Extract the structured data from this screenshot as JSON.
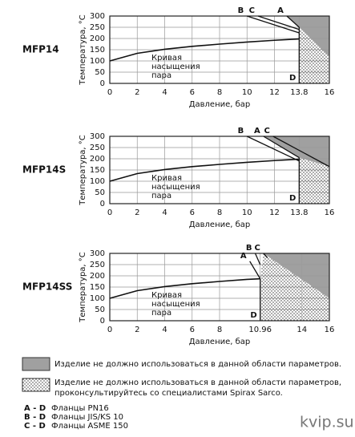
{
  "chart_data": [
    {
      "type": "line",
      "label": "MFP14",
      "xlabel": "Давление, бар",
      "ylabel": "Температура, °C",
      "xlim": [
        0,
        16
      ],
      "ylim": [
        0,
        300
      ],
      "xticks": [
        0,
        2,
        4,
        6,
        8,
        10,
        12,
        13.8,
        16
      ],
      "yticks": [
        0,
        50,
        100,
        150,
        200,
        250,
        300
      ],
      "grid": true,
      "curve_label": [
        "Кривая",
        "насыщения",
        "пара"
      ],
      "curve": {
        "x": [
          0,
          2,
          4,
          6,
          8,
          10,
          12,
          13.8
        ],
        "y": [
          100,
          134,
          152,
          165,
          175,
          184,
          192,
          198
        ]
      },
      "regions": [
        {
          "pattern": "solid",
          "x": [
            12.9,
            16,
            16,
            13.8
          ],
          "y": [
            300,
            300,
            120,
            250
          ]
        },
        {
          "pattern": "dots",
          "x": [
            13.8,
            16,
            16,
            13.8
          ],
          "y": [
            250,
            120,
            0,
            0
          ]
        }
      ],
      "lines": [
        {
          "label": "A",
          "x": [
            12.9,
            13.8
          ],
          "y": [
            300,
            250
          ]
        },
        {
          "label": "B",
          "x": [
            10,
            13.8
          ],
          "y": [
            300,
            225
          ]
        },
        {
          "label": "C",
          "x": [
            10.8,
            13.8
          ],
          "y": [
            300,
            240
          ]
        },
        {
          "label": "D",
          "x": [
            13.8,
            13.8
          ],
          "y": [
            0,
            250
          ]
        }
      ]
    },
    {
      "type": "line",
      "label": "MFP14S",
      "xlabel": "Давление, бар",
      "ylabel": "Температура, °C",
      "xlim": [
        0,
        16
      ],
      "ylim": [
        0,
        300
      ],
      "xticks": [
        0,
        2,
        4,
        6,
        8,
        10,
        12,
        13.8,
        16
      ],
      "yticks": [
        0,
        50,
        100,
        150,
        200,
        250,
        300
      ],
      "grid": true,
      "curve_label": [
        "Кривая",
        "насыщения",
        "пара"
      ],
      "curve": {
        "x": [
          0,
          2,
          4,
          6,
          8,
          10,
          12,
          13.8
        ],
        "y": [
          100,
          134,
          152,
          165,
          175,
          184,
          192,
          198
        ]
      },
      "regions": [
        {
          "pattern": "solid",
          "x": [
            11.2,
            16,
            16,
            13.8
          ],
          "y": [
            300,
            300,
            165,
            205
          ]
        },
        {
          "pattern": "dots",
          "x": [
            13.8,
            16,
            16,
            13.8
          ],
          "y": [
            205,
            165,
            0,
            0
          ]
        }
      ],
      "lines": [
        {
          "label": "A",
          "x": [
            11.2,
            13.8
          ],
          "y": [
            300,
            205
          ]
        },
        {
          "label": "C",
          "x": [
            11.9,
            16
          ],
          "y": [
            300,
            165
          ]
        },
        {
          "label": "B",
          "x": [
            10,
            13.8
          ],
          "y": [
            300,
            190
          ]
        },
        {
          "label": "D",
          "x": [
            13.8,
            13.8
          ],
          "y": [
            0,
            205
          ]
        }
      ]
    },
    {
      "type": "line",
      "label": "MFP14SS",
      "xlabel": "Давление, бар",
      "ylabel": "Температура, °C",
      "xlim": [
        0,
        16
      ],
      "ylim": [
        0,
        300
      ],
      "xticks": [
        0,
        2,
        4,
        6,
        8,
        10.96,
        14,
        16
      ],
      "yticks": [
        0,
        50,
        100,
        150,
        200,
        250,
        300
      ],
      "grid": true,
      "curve_label": [
        "Кривая",
        "насыщения",
        "пара"
      ],
      "curve": {
        "x": [
          0,
          2,
          4,
          6,
          8,
          10,
          10.96
        ],
        "y": [
          100,
          134,
          152,
          165,
          175,
          184,
          187
        ]
      },
      "regions": [
        {
          "pattern": "solid",
          "x": [
            11.2,
            16,
            16
          ],
          "y": [
            300,
            300,
            100
          ]
        },
        {
          "pattern": "dots",
          "x": [
            10.96,
            10.96,
            11.2,
            16,
            16
          ],
          "y": [
            0,
            187,
            300,
            100,
            0
          ]
        }
      ],
      "lines": [
        {
          "label": "A",
          "x": [
            10.2,
            10.96
          ],
          "y": [
            265,
            187
          ]
        },
        {
          "label": "B",
          "x": [
            10.6,
            10.96
          ],
          "y": [
            300,
            250
          ]
        },
        {
          "label": "C",
          "x": [
            11.2,
            11.5
          ],
          "y": [
            300,
            280
          ]
        },
        {
          "label": "D",
          "x": [
            10.96,
            10.96
          ],
          "y": [
            0,
            187
          ]
        }
      ]
    }
  ],
  "legend": {
    "solid": "Изделие не должно использоваться в данной области параметров.",
    "dots": [
      "Изделие не должно использоваться в данной области параметров,",
      "проконсультируйтесь со  специалистами Spirax Sarco."
    ]
  },
  "flanges": [
    {
      "code": "A - D",
      "name": "Фланцы PN16"
    },
    {
      "code": "B - D",
      "name": "Фланцы JIS/KS 10"
    },
    {
      "code": "C - D",
      "name": "Фланцы ASME 150"
    }
  ],
  "watermark": "kvip.su"
}
